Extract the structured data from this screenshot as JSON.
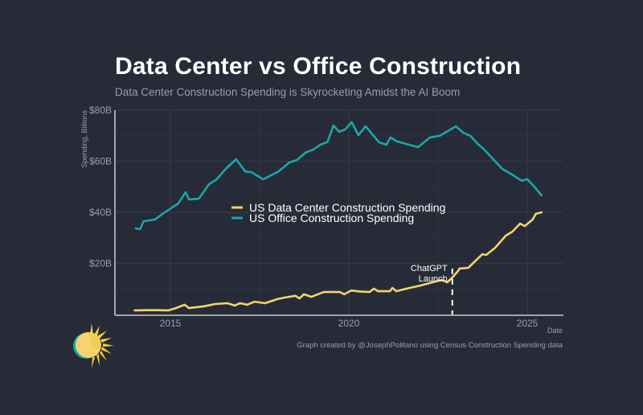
{
  "chart_data": {
    "type": "line",
    "title": "Data Center vs Office Construction",
    "subtitle": "Data Center Construction Spending is Skyrocketing Amidst the AI Boom",
    "xlabel": "Date",
    "ylabel": "Spending, Billions",
    "xlim": [
      2013.55,
      2026.0
    ],
    "ylim": [
      0,
      80
    ],
    "x_ticks": [
      2015,
      2020,
      2025
    ],
    "x_tick_labels": [
      "2015",
      "2020",
      "2025"
    ],
    "y_ticks": [
      20,
      40,
      60,
      80
    ],
    "y_tick_labels": [
      "$20B",
      "$40B",
      "$60B",
      "$80B"
    ],
    "grid": true,
    "legend_position": "center",
    "series": [
      {
        "name": "US Data Center Construction Spending",
        "color": "#f5d36e",
        "x": [
          2014.0,
          2014.5,
          2014.95,
          2015.15,
          2015.4,
          2015.52,
          2015.95,
          2016.25,
          2016.6,
          2016.8,
          2016.95,
          2017.15,
          2017.36,
          2017.65,
          2018.0,
          2018.2,
          2018.5,
          2018.62,
          2018.74,
          2018.95,
          2019.3,
          2019.75,
          2019.87,
          2020.07,
          2020.3,
          2020.58,
          2020.7,
          2020.82,
          2021.15,
          2021.22,
          2021.33,
          2021.7,
          2022.0,
          2022.27,
          2022.6,
          2022.76,
          2022.9,
          2023.06,
          2023.1,
          2023.35,
          2023.74,
          2023.85,
          2024.1,
          2024.4,
          2024.58,
          2024.8,
          2024.93,
          2025.15,
          2025.24,
          2025.4
        ],
        "values": [
          1.6,
          1.7,
          1.6,
          2.5,
          3.8,
          2.5,
          3.2,
          4.1,
          4.4,
          3.5,
          4.4,
          3.8,
          5.0,
          4.4,
          6.0,
          6.6,
          7.3,
          6.3,
          7.9,
          6.9,
          8.8,
          8.8,
          7.9,
          9.4,
          9.0,
          8.8,
          10.1,
          9.1,
          9.1,
          10.4,
          9.1,
          10.4,
          11.3,
          12.3,
          13.5,
          12.6,
          14.5,
          17.0,
          18.0,
          18.3,
          23.6,
          23.3,
          26.1,
          30.9,
          32.4,
          35.6,
          34.6,
          37.2,
          39.4,
          40.0
        ]
      },
      {
        "name": "US Office Construction Spending",
        "color": "#1aa7a8",
        "x": [
          2014.03,
          2014.15,
          2014.25,
          2014.57,
          2014.78,
          2015.22,
          2015.43,
          2015.52,
          2015.8,
          2016.08,
          2016.3,
          2016.53,
          2016.84,
          2017.1,
          2017.28,
          2017.6,
          2018.03,
          2018.33,
          2018.55,
          2018.8,
          2019.0,
          2019.2,
          2019.4,
          2019.57,
          2019.73,
          2019.9,
          2020.08,
          2020.27,
          2020.47,
          2020.85,
          2021.05,
          2021.17,
          2021.35,
          2021.6,
          2021.94,
          2022.27,
          2022.55,
          2022.8,
          2023.0,
          2023.2,
          2023.4,
          2023.6,
          2023.8,
          2024.1,
          2024.3,
          2024.55,
          2024.85,
          2025.0,
          2025.2,
          2025.4
        ],
        "values": [
          33.7,
          33.4,
          36.5,
          37.2,
          39.4,
          43.5,
          47.9,
          45.0,
          45.4,
          51.0,
          52.9,
          56.7,
          60.8,
          56.0,
          55.7,
          52.9,
          56.0,
          59.5,
          60.5,
          63.5,
          64.5,
          66.5,
          67.5,
          74.0,
          71.5,
          72.5,
          75.3,
          70.2,
          73.7,
          67.4,
          66.5,
          69.3,
          67.8,
          66.8,
          65.5,
          69.3,
          70.0,
          72.0,
          73.7,
          71.2,
          70.0,
          67.0,
          64.5,
          60.0,
          57.0,
          55.0,
          52.3,
          53.0,
          50.0,
          46.6
        ]
      }
    ],
    "annotations": [
      {
        "x": 2022.9,
        "label_line1": "ChatGPT",
        "label_line2": "Launch",
        "style": "dashed vertical line"
      }
    ]
  },
  "footer": {
    "source": "Graph created by @JosephPolitano using Census Construction Spending data"
  },
  "logo": {
    "icon": "sun-logo-icon"
  }
}
